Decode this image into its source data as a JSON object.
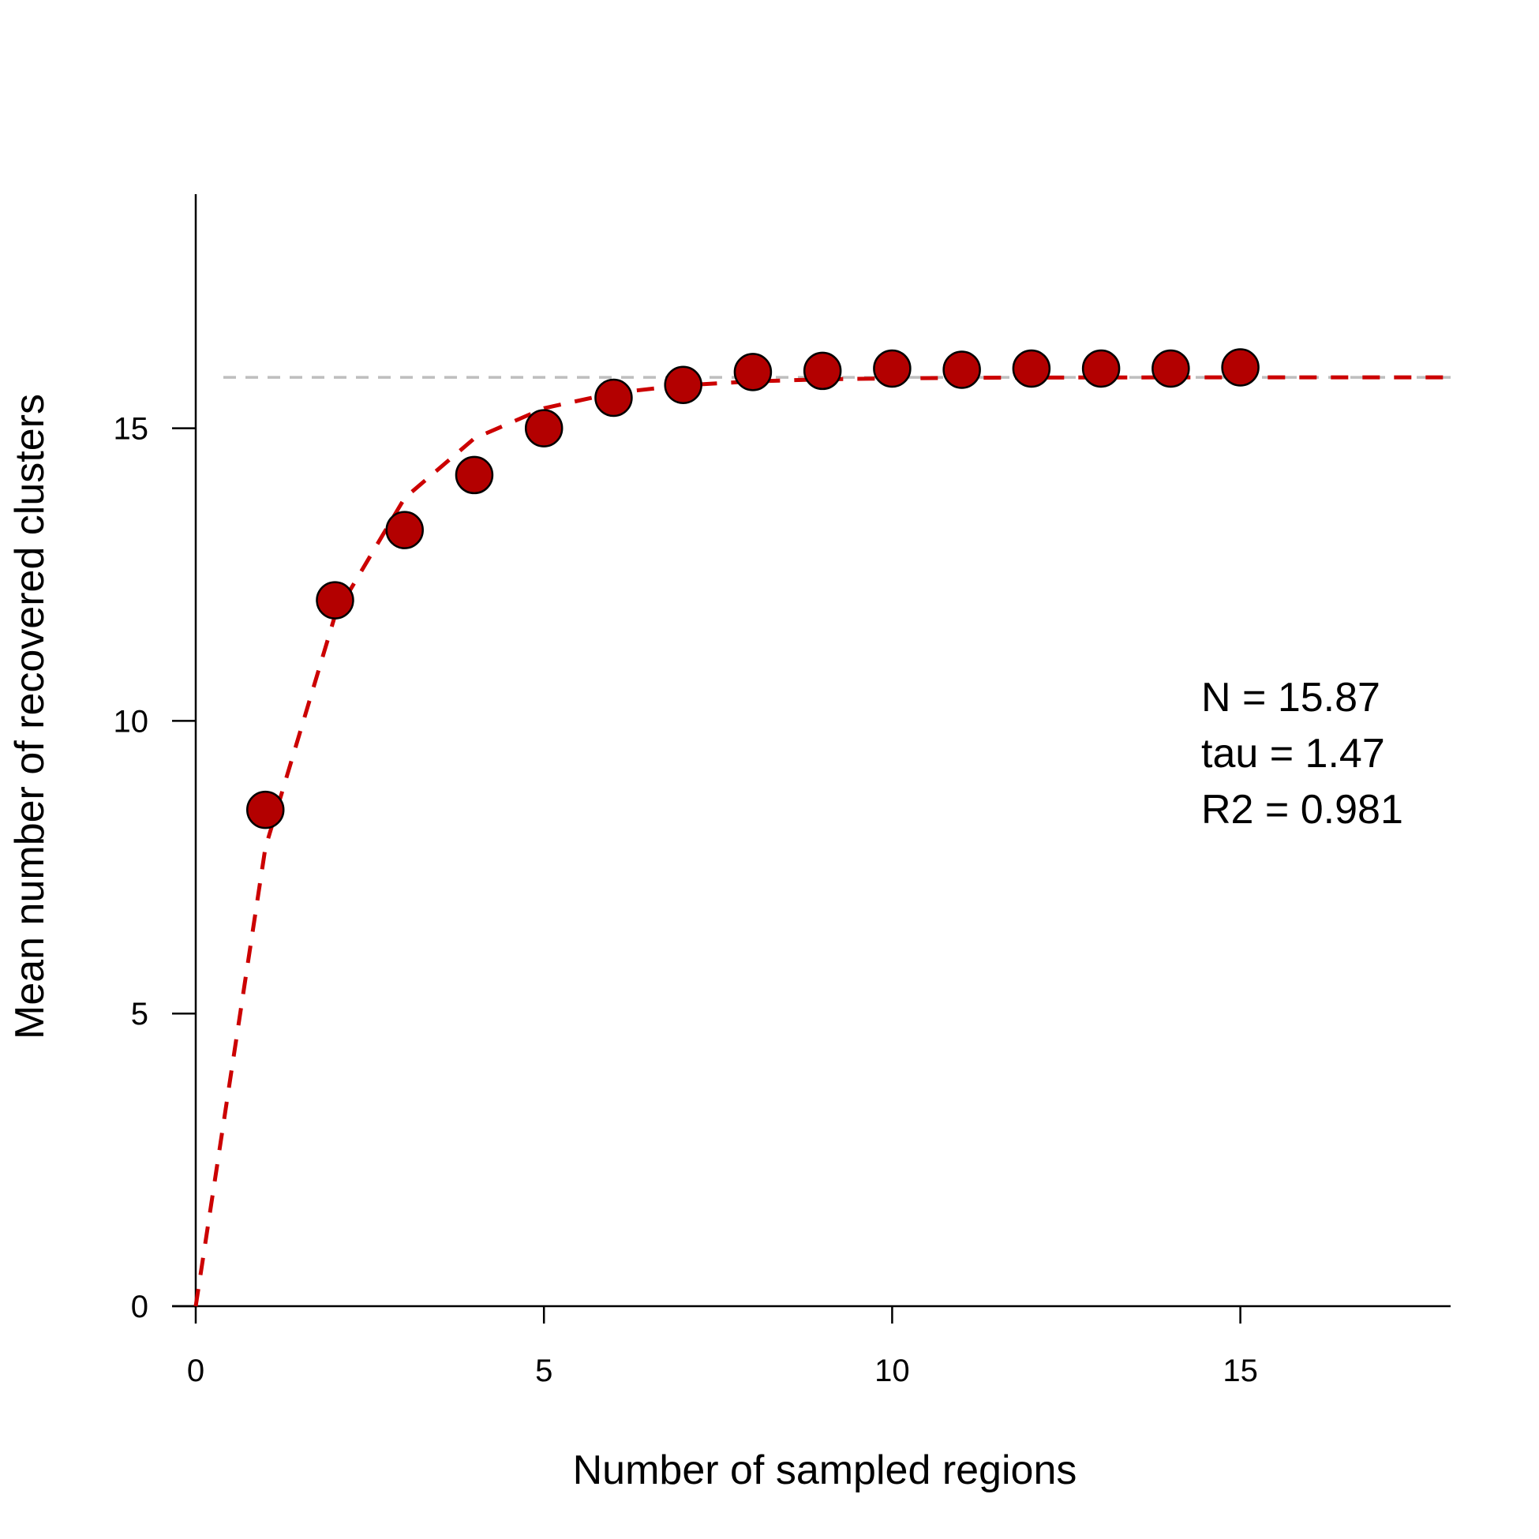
{
  "chart_data": {
    "type": "scatter",
    "xlabel": "Number of sampled regions",
    "ylabel": "Mean number of recovered clusters",
    "xlim": [
      0,
      18
    ],
    "ylim": [
      0,
      18.5
    ],
    "x_ticks": [
      0,
      5,
      10,
      15
    ],
    "y_ticks": [
      0,
      5,
      10,
      15
    ],
    "grid": false,
    "points": {
      "x": [
        1,
        2,
        3,
        4,
        5,
        6,
        7,
        8,
        9,
        10,
        11,
        12,
        13,
        14,
        15
      ],
      "y": [
        8.48,
        12.06,
        13.26,
        14.2,
        15.0,
        15.52,
        15.74,
        15.96,
        15.98,
        16.02,
        16.0,
        16.02,
        16.02,
        16.02,
        16.04
      ]
    },
    "fit": {
      "model": "N * (1 - exp(-x / tau))",
      "N": 15.87,
      "tau": 1.47,
      "R2": 0.981,
      "x_range": [
        0,
        18
      ]
    },
    "asymptote": 15.87,
    "annotations": [
      "N = 15.87",
      "tau = 1.47",
      "R2 = 0.981"
    ],
    "colors": {
      "points": "#b30000",
      "fit": "#cc0000",
      "asymptote": "#bebebe",
      "axes": "#000000"
    }
  }
}
